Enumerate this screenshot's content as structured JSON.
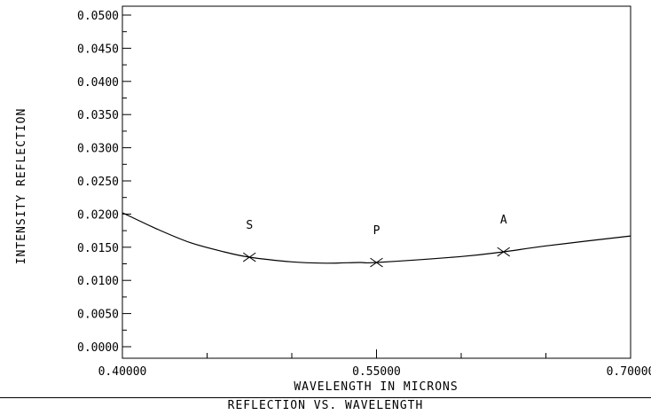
{
  "chart_data": {
    "type": "line",
    "title": "REFLECTION VS. WAVELENGTH",
    "xlabel": "WAVELENGTH IN MICRONS",
    "ylabel": "INTENSITY REFLECTION",
    "xlim": [
      0.4,
      0.7
    ],
    "ylim": [
      0.0,
      0.0505
    ],
    "x_ticks": [
      "0.40000",
      "0.55000",
      "0.70000"
    ],
    "y_ticks": [
      "0.0000",
      "0.0050",
      "0.0100",
      "0.0150",
      "0.0200",
      "0.0250",
      "0.0300",
      "0.0350",
      "0.0400",
      "0.0450",
      "0.0500"
    ],
    "grid": false,
    "series": [
      {
        "x": [
          0.4,
          0.42,
          0.44,
          0.46,
          0.475,
          0.5,
          0.52,
          0.54,
          0.55,
          0.6,
          0.625,
          0.65,
          0.7
        ],
        "y": [
          0.0202,
          0.0178,
          0.0157,
          0.0143,
          0.0135,
          0.0128,
          0.0126,
          0.0127,
          0.0127,
          0.0136,
          0.0143,
          0.0152,
          0.0167
        ]
      }
    ],
    "markers": [
      {
        "label": "S",
        "x": 0.475,
        "y": 0.0135
      },
      {
        "label": "P",
        "x": 0.55,
        "y": 0.0127
      },
      {
        "label": "A",
        "x": 0.625,
        "y": 0.0143
      }
    ]
  }
}
